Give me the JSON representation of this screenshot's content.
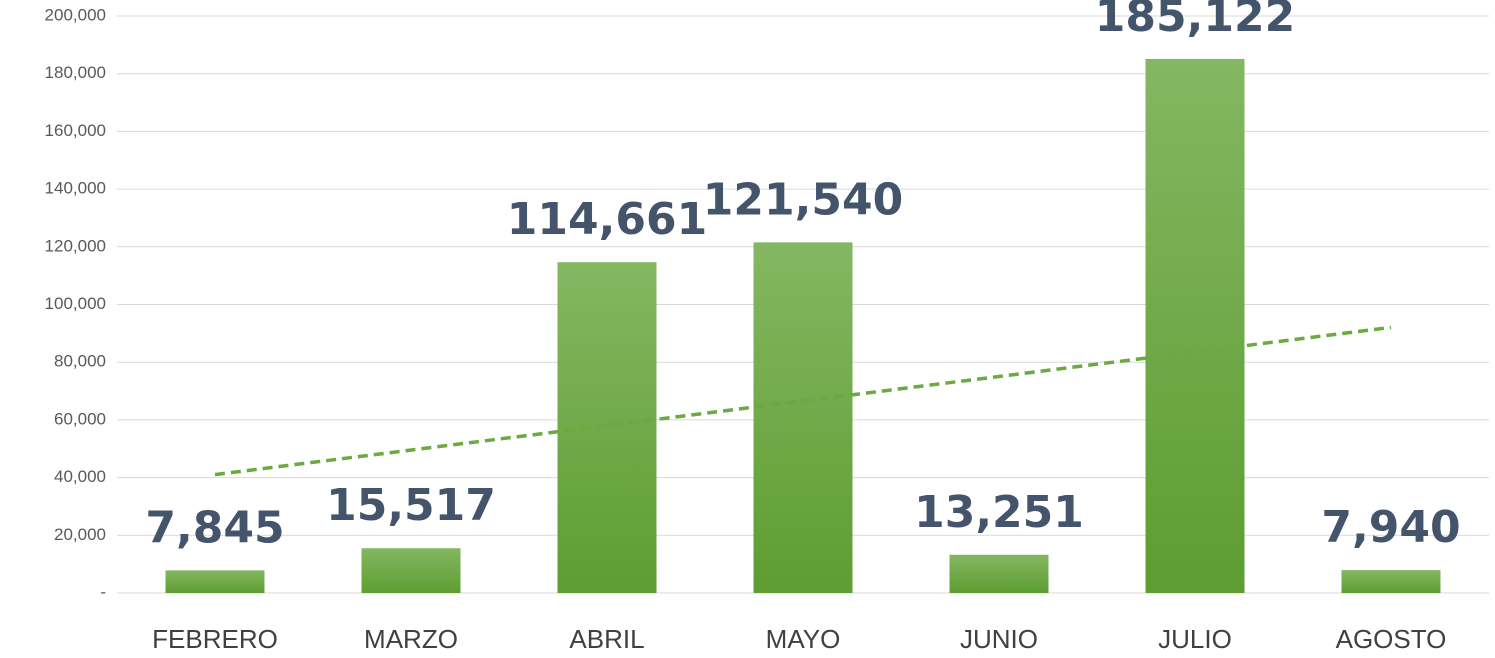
{
  "chart_data": {
    "type": "bar",
    "categories": [
      "FEBRERO",
      "MARZO",
      "ABRIL",
      "MAYO",
      "JUNIO",
      "JULIO",
      "AGOSTO"
    ],
    "values": [
      7845,
      15517,
      114661,
      121540,
      13251,
      185122,
      7940
    ],
    "value_labels": [
      "7,845",
      "15,517",
      "114,661",
      "121,540",
      "13,251",
      "185,122",
      "7,940"
    ],
    "color": "#6aaa3f",
    "ylim": [
      0,
      200000
    ],
    "yticks": [
      {
        "value": 0,
        "label": "-"
      },
      {
        "value": 20000,
        "label": "20,000"
      },
      {
        "value": 40000,
        "label": "40,000"
      },
      {
        "value": 60000,
        "label": "60,000"
      },
      {
        "value": 80000,
        "label": "80,000"
      },
      {
        "value": 100000,
        "label": "100,000"
      },
      {
        "value": 120000,
        "label": "120,000"
      },
      {
        "value": 140000,
        "label": "140,000"
      },
      {
        "value": 160000,
        "label": "160,000"
      },
      {
        "value": 180000,
        "label": "180,000"
      },
      {
        "value": 200000,
        "label": "200,000"
      }
    ],
    "grid": true,
    "trendline": "linear"
  }
}
